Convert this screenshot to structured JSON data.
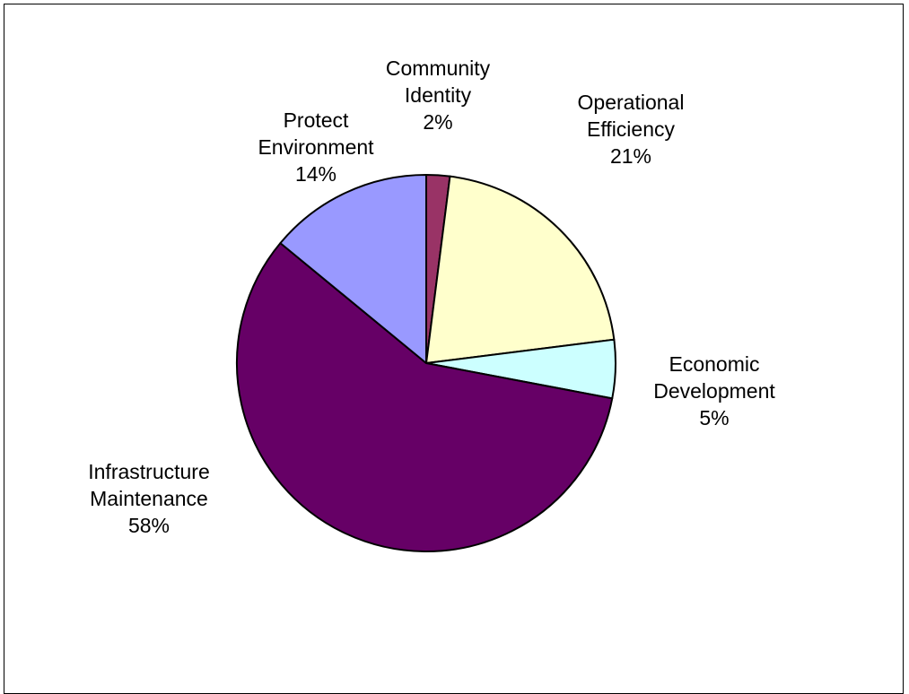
{
  "chart_data": {
    "type": "pie",
    "title": "",
    "start": "top",
    "direction": "clockwise",
    "slices": [
      {
        "label": [
          "Community",
          "Identity"
        ],
        "percent_label": "2%",
        "value": 2,
        "color": "#993366"
      },
      {
        "label": [
          "Operational",
          "Efficiency"
        ],
        "percent_label": "21%",
        "value": 21,
        "color": "#FFFFCC"
      },
      {
        "label": [
          "Economic",
          "Development"
        ],
        "percent_label": "5%",
        "value": 5,
        "color": "#CCFFFF"
      },
      {
        "label": [
          "Infrastructure",
          "Maintenance"
        ],
        "percent_label": "58%",
        "value": 58,
        "color": "#660066"
      },
      {
        "label": [
          "Protect",
          "Environment"
        ],
        "percent_label": "14%",
        "value": 14,
        "color": "#9999FF"
      }
    ]
  }
}
